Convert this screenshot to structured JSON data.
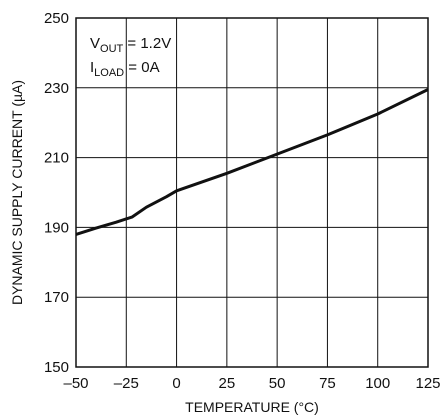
{
  "chart_data": {
    "type": "line",
    "title": "",
    "xlabel": "TEMPERATURE (°C)",
    "ylabel": "DYNAMIC SUPPLY CURRENT (µA)",
    "xlim": [
      -50,
      125
    ],
    "ylim": [
      150,
      250
    ],
    "xticks": [
      -50,
      -25,
      0,
      25,
      50,
      75,
      100,
      125
    ],
    "xtick_labels": [
      "–50",
      "–25",
      "0",
      "25",
      "50",
      "75",
      "100",
      "125"
    ],
    "yticks": [
      150,
      170,
      190,
      210,
      230,
      250
    ],
    "grid": true,
    "legend": "none",
    "annotations": [
      {
        "main": "V",
        "sub": "OUT",
        "rest": " = 1.2V"
      },
      {
        "main": "I",
        "sub": "LOAD",
        "rest": " = 0A"
      }
    ],
    "series": [
      {
        "x": [
          -50,
          -40,
          -30,
          -22,
          -15,
          -5,
          0,
          25,
          50,
          75,
          100,
          125
        ],
        "y": [
          188,
          189.8,
          191.5,
          193,
          195.8,
          198.8,
          200.5,
          205.5,
          211,
          216.5,
          222.5,
          229.5
        ]
      }
    ],
    "colors": {
      "line": "#111111",
      "grid": "#111111",
      "frame": "#111111"
    }
  }
}
